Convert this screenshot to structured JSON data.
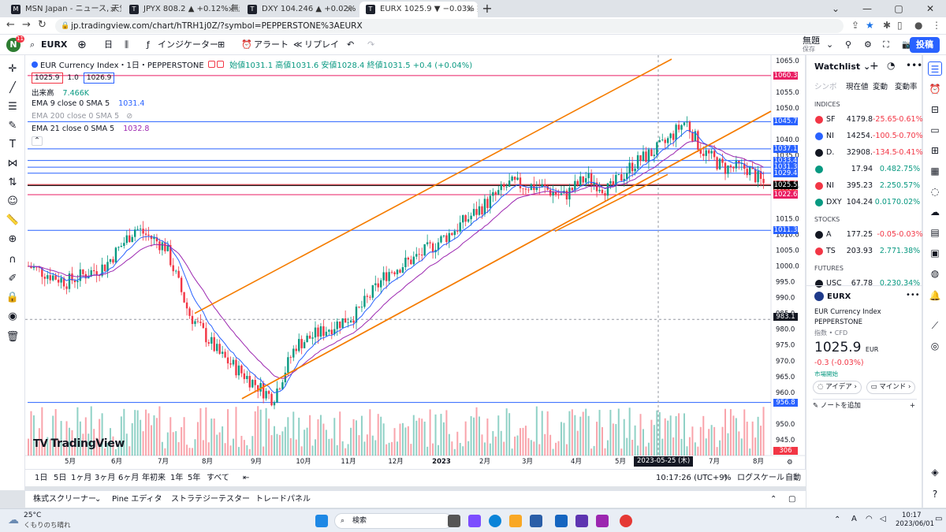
{
  "browser": {
    "tabs": [
      {
        "title": "MSN Japan - ニュース, 天気, メール"
      },
      {
        "title": "JPYX 808.2 ▲ +0.12% 無題"
      },
      {
        "title": "DXY 104.246 ▲ +0.02% 無題"
      },
      {
        "title": "EURX 1025.9 ▼ −0.03% 無題"
      }
    ],
    "url": "jp.tradingview.com/chart/hTRH1j0Z/?symbol=PEPPERSTONE%3AEURX"
  },
  "toolbar": {
    "avatar_letter": "N",
    "avatar_badge": "11",
    "symbol": "EURX",
    "interval": "日",
    "indicators": "インジケーター",
    "alert": "アラート",
    "replay": "リプレイ",
    "layout_name": "無題",
    "layout_sub": "保存",
    "post": "投稿"
  },
  "legend": {
    "title": "EUR Currency Index・1日・PEPPERSTONE",
    "ohlc": "始値1031.1 高値1031.6 安値1028.4 終値1031.5 +0.4 (+0.04%)",
    "bid": "1025.9",
    "spread": "1.0",
    "ask": "1026.9",
    "volume_label": "出来高",
    "volume_value": "7.466K",
    "ema9": "EMA 9 close 0 SMA 5",
    "ema9_value": "1031.4",
    "ema200": "EMA 200 close 0 SMA 5",
    "ema21": "EMA 21 close 0 SMA 5",
    "ema21_value": "1032.8",
    "watermark": "TradingView"
  },
  "chart_data": {
    "type": "candlestick",
    "ylim": [
      940,
      1066
    ],
    "y_ticks": [
      "1065.0",
      "1055.0",
      "1050.0",
      "1040.0",
      "1035.0",
      "1025.0",
      "1015.0",
      "1010.0",
      "1005.0",
      "1000.0",
      "995.0",
      "990.0",
      "985.0",
      "980.0",
      "975.0",
      "970.0",
      "965.0",
      "960.0",
      "950.0",
      "945.0"
    ],
    "x_ticks": [
      "5月",
      "6月",
      "7月",
      "8月",
      "9月",
      "10月",
      "11月",
      "12月",
      "2023",
      "2月",
      "3月",
      "4月",
      "5月",
      "7月",
      "8月"
    ],
    "cursor_date": "2023-05-25 (木)",
    "cursor_price": "983.1",
    "horizontal_lines": [
      {
        "label": "1060.3",
        "value": 1060.3,
        "color": "#e91e63"
      },
      {
        "label": "1045.7",
        "value": 1045.7,
        "color": "#2962ff"
      },
      {
        "label": "1037.1",
        "value": 1037.1,
        "color": "#2962ff"
      },
      {
        "label": "1033.4",
        "value": 1033.4,
        "color": "#2962ff"
      },
      {
        "label": "1031.3",
        "value": 1031.3,
        "color": "#2962ff"
      },
      {
        "label": "1029.4",
        "value": 1029.4,
        "color": "#2962ff"
      },
      {
        "label": "1025.8",
        "value": 1025.8,
        "color": "#f23645"
      },
      {
        "label": "19:40:32",
        "value": 1024.6,
        "color": "#f23645"
      },
      {
        "label": "1025.5",
        "value": 1025.5,
        "color": "#000000"
      },
      {
        "label": "1022.6",
        "value": 1022.6,
        "color": "#e91e63"
      },
      {
        "label": "1011.3",
        "value": 1011.3,
        "color": "#2962ff"
      },
      {
        "label": "956.8",
        "value": 956.8,
        "color": "#2962ff"
      },
      {
        "label": "306",
        "value": 941.5,
        "color": "#f23645"
      }
    ],
    "volume_label": "306",
    "channels": [
      {
        "name": "upper",
        "from": [
          978,
          8,
          984
        ],
        "to": [
          1067,
          142,
          1065
        ]
      },
      {
        "name": "lower",
        "from": [
          958,
          8,
          958
        ],
        "to": [
          1050,
          155,
          1050
        ]
      }
    ]
  },
  "timeframes": [
    "1日",
    "5日",
    "1ヶ月",
    "3ヶ月",
    "6ヶ月",
    "年初来",
    "1年",
    "5年",
    "すべて"
  ],
  "status": {
    "clock": "10:17:26 (UTC+9)",
    "percent": "%",
    "log": "ログスケール",
    "auto": "自動"
  },
  "panel_tabs": [
    "株式スクリーナー",
    "Pine エディタ",
    "ストラテジーテスター",
    "トレードパネル"
  ],
  "watchlist": {
    "title": "Watchlist",
    "columns": [
      "シンボ",
      "現在値",
      "変動",
      "変動率"
    ],
    "sections": [
      {
        "name": "INDICES",
        "rows": [
          {
            "sym": "SF",
            "last": "4179.8",
            "chg": "-25.65",
            "pct": "-0.61%",
            "color": "#f23645",
            "dir": "neg"
          },
          {
            "sym": "NI",
            "last": "14254.",
            "chg": "-100.5",
            "pct": "-0.70%",
            "color": "#2962ff",
            "dir": "neg"
          },
          {
            "sym": "D.",
            "last": "32908.",
            "chg": "-134.5",
            "pct": "-0.41%",
            "color": "#131722",
            "dir": "neg"
          },
          {
            "sym": "",
            "last": "17.94",
            "chg": "0.48",
            "pct": "2.75%",
            "color": "#089981",
            "dir": "pos"
          },
          {
            "sym": "NI",
            "last": "395.23",
            "chg": "2.25",
            "pct": "0.57%",
            "color": "#f23645",
            "dir": "pos"
          },
          {
            "sym": "DXY",
            "last": "104.24",
            "chg": "0.017",
            "pct": "0.02%",
            "color": "#089981",
            "dir": "pos"
          }
        ]
      },
      {
        "name": "STOCKS",
        "rows": [
          {
            "sym": "A",
            "last": "177.25",
            "chg": "-0.05",
            "pct": "-0.03%",
            "color": "#131722",
            "dir": "neg"
          },
          {
            "sym": "TS",
            "last": "203.93",
            "chg": "2.77",
            "pct": "1.38%",
            "color": "#f23645",
            "dir": "pos"
          }
        ]
      },
      {
        "name": "FUTURES",
        "rows": [
          {
            "sym": "USC",
            "last": "67.78",
            "chg": "0.23",
            "pct": "0.34%",
            "color": "#131722",
            "dir": "pos"
          }
        ]
      }
    ]
  },
  "detail": {
    "symbol": "EURX",
    "name": "EUR Currency Index",
    "exchange": "PEPPERSTONE",
    "type": "指数 • CFD",
    "price": "1025.9",
    "currency": "EUR",
    "change": "-0.3 (-0.03%)",
    "market": "市場開始",
    "ideas": "アイデア",
    "minds": "マインド",
    "add_note": "ノートを追加"
  },
  "taskbar": {
    "weather_temp": "25°C",
    "weather_desc": "くもりのち晴れ",
    "search": "検索",
    "time": "10:17",
    "date": "2023/06/01"
  }
}
